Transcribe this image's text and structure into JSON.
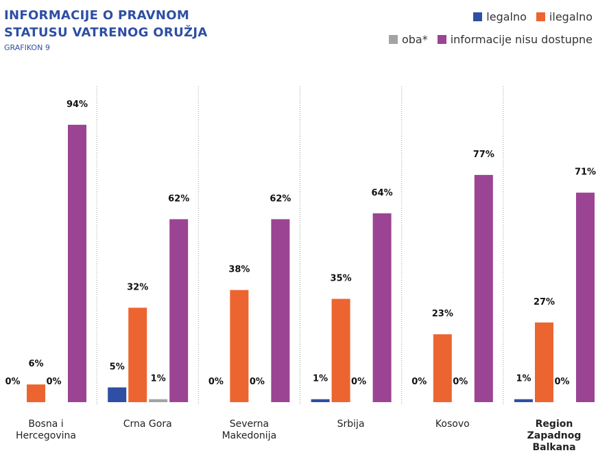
{
  "chart_data": {
    "type": "bar",
    "title": "INFORMACIJE O PRAVNOM STATUSU VATRENOG ORUŽJA",
    "subtitle": "GRAFIKON 9",
    "categories": [
      "Bosna i Hercegovina",
      "Crna Gora",
      "Severna Makedonija",
      "Srbija",
      "Kosovo",
      "Region Zapadnog Balkana"
    ],
    "series": [
      {
        "name": "legalno",
        "color": "#2e4fa3",
        "values": [
          0,
          5,
          0,
          1,
          0,
          1
        ],
        "value_labels": [
          "0%",
          "5%",
          "0%",
          "1%",
          "0%",
          "1%"
        ]
      },
      {
        "name": "ilegalno",
        "color": "#ec6530",
        "values": [
          6,
          32,
          38,
          35,
          23,
          27
        ],
        "value_labels": [
          "6%",
          "32%",
          "38%",
          "35%",
          "23%",
          "27%"
        ]
      },
      {
        "name": "oba*",
        "color": "#a3a3a3",
        "values": [
          0,
          1,
          0,
          0,
          0,
          0
        ],
        "value_labels": [
          "0%",
          "1%",
          "0%",
          "0%",
          "0%",
          "0%"
        ]
      },
      {
        "name": "informacije nisu dostupne",
        "color": "#9b4493",
        "values": [
          94,
          62,
          62,
          64,
          77,
          71
        ],
        "value_labels": [
          "94%",
          "62%",
          "62%",
          "64%",
          "77%",
          "71%"
        ]
      }
    ]
  }
}
